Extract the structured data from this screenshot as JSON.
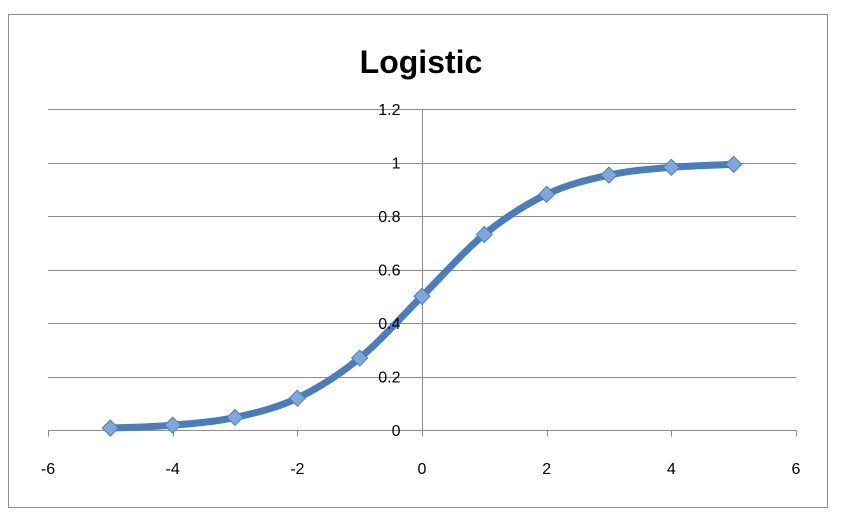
{
  "chart_data": {
    "type": "line",
    "title": "Logistic",
    "xlabel": "",
    "ylabel": "",
    "xlim": [
      -6,
      6
    ],
    "ylim": [
      0,
      1.2
    ],
    "x_ticks": [
      -6,
      -4,
      -2,
      0,
      2,
      4,
      6
    ],
    "x_tick_labels": [
      "-6",
      "-4",
      "-2",
      "0",
      "2",
      "4",
      "6"
    ],
    "y_ticks": [
      0,
      0.2,
      0.4,
      0.6,
      0.8,
      1,
      1.2
    ],
    "y_tick_labels": [
      "0",
      "0.2",
      "0.4",
      "0.6",
      "0.8",
      "1",
      "1.2"
    ],
    "grid": "horizontal major gridlines",
    "legend": "none",
    "smoothed": true,
    "marker": "diamond",
    "series": [
      {
        "x": [
          -5,
          -4,
          -3,
          -2,
          -1,
          0,
          1,
          2,
          3,
          4,
          5
        ],
        "values": [
          0.007,
          0.018,
          0.047,
          0.119,
          0.269,
          0.5,
          0.731,
          0.881,
          0.953,
          0.982,
          0.993
        ],
        "color": "#4a7ebb",
        "marker_color": "#7fa7dc"
      }
    ]
  }
}
